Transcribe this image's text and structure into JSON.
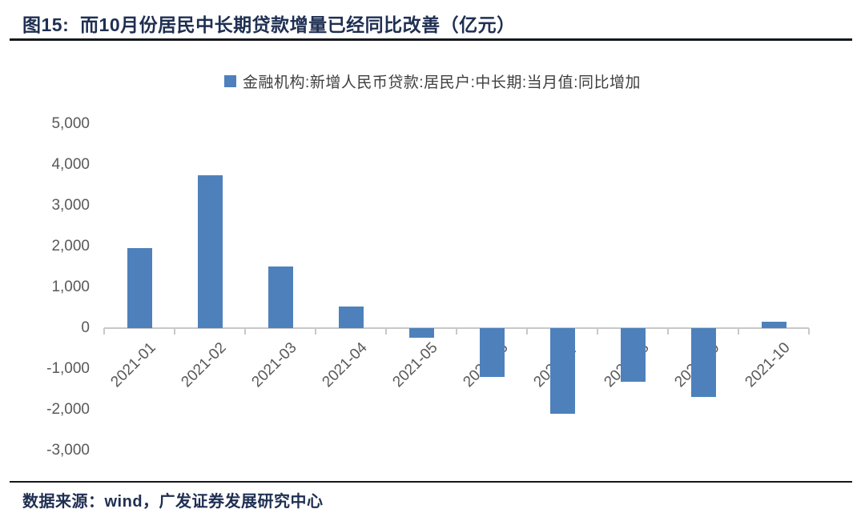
{
  "figure": {
    "title": "图15:  而10月份居民中长期贷款增量已经同比改善（亿元）",
    "source": "数据来源：wind，广发证券发展研究中心"
  },
  "legend": {
    "swatch_icon": "series-color-swatch-icon",
    "label": "金融机构:新增人民币贷款:居民户:中长期:当月值:同比增加"
  },
  "chart_data": {
    "type": "bar",
    "title": "而10月份居民中长期贷款增量已经同比改善（亿元）",
    "unit": "亿元",
    "legend": [
      "金融机构:新增人民币贷款:居民户:中长期:当月值:同比增加"
    ],
    "legend_position": "top-center",
    "categories": [
      "2021-01",
      "2021-02",
      "2021-03",
      "2021-04",
      "2021-05",
      "2021-06",
      "2021-07",
      "2021-08",
      "2021-09",
      "2021-10"
    ],
    "values": [
      1957,
      3742,
      1501,
      529,
      -236,
      -1193,
      -2093,
      -1312,
      -1695,
      162
    ],
    "ylim": [
      -3000,
      5000
    ],
    "ytick_labels": [
      "5,000",
      "4,000",
      "3,000",
      "2,000",
      "1,000",
      "0",
      "-1,000",
      "-2,000",
      "-3,000"
    ],
    "grid": false,
    "x_label_rotation": -45,
    "bar_color": "#4E81BC",
    "axis_color": "#C8C8C8",
    "tick_label_color": "#595959",
    "title_color": "#1f2f52"
  }
}
